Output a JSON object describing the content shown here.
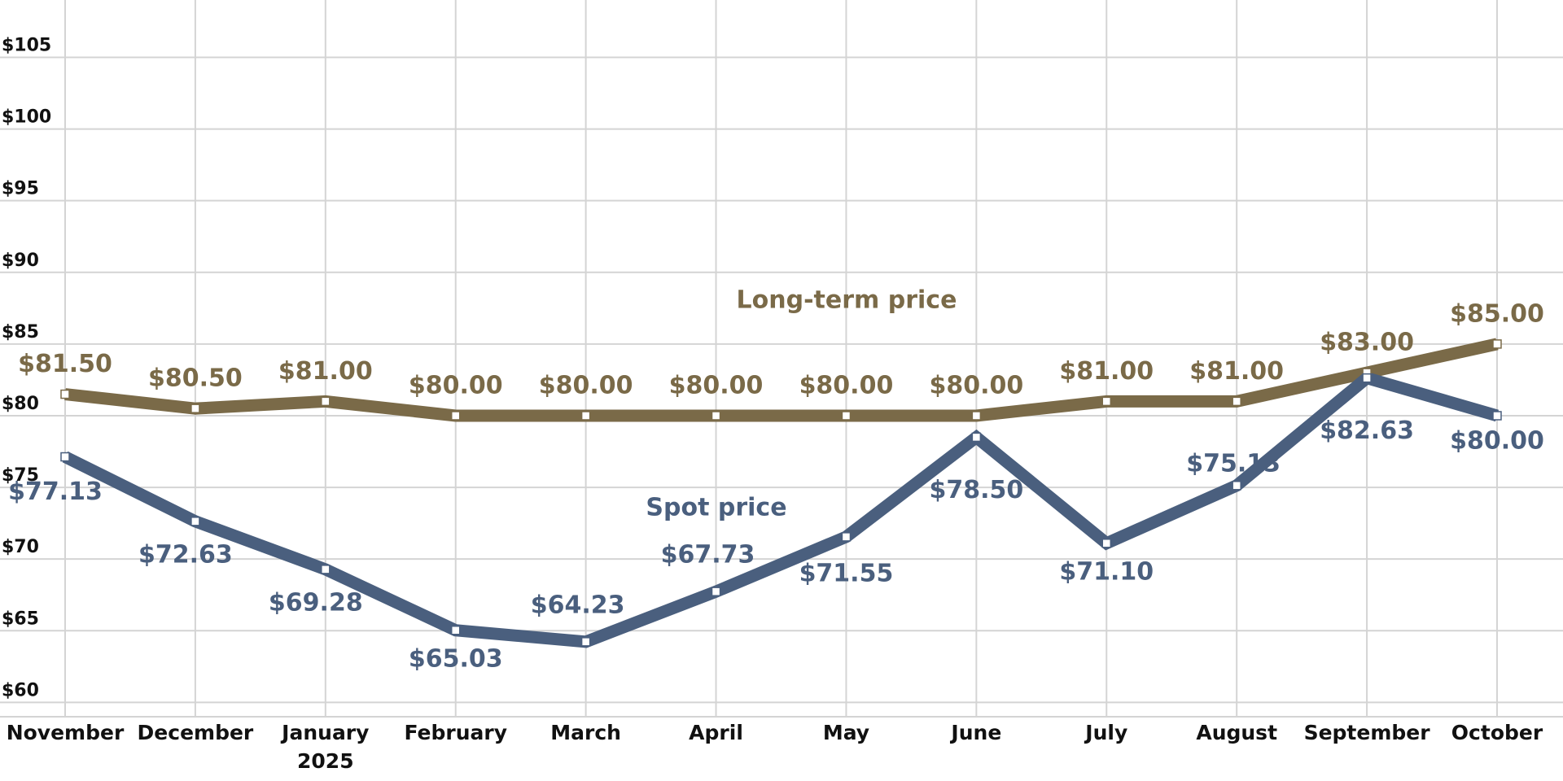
{
  "chart_data": {
    "type": "line",
    "categories": [
      "November",
      "December",
      "January",
      "February",
      "March",
      "April",
      "May",
      "June",
      "July",
      "August",
      "September",
      "October"
    ],
    "category_years": [
      null,
      null,
      "2025",
      null,
      null,
      null,
      null,
      null,
      null,
      null,
      null,
      null
    ],
    "series": [
      {
        "name": "Long-term price",
        "color": "#7a6a48",
        "values": [
          81.5,
          80.5,
          81,
          80,
          80,
          80,
          80,
          80,
          81,
          81,
          83,
          85
        ],
        "value_labels": [
          "$81.50",
          "$80.50",
          "$81.00",
          "$80.00",
          "$80.00",
          "$80.00",
          "$80.00",
          "$80.00",
          "$81.00",
          "$81.00",
          "$83.00",
          "$85.00"
        ]
      },
      {
        "name": "Spot price",
        "color": "#4a5f7e",
        "values": [
          77.13,
          72.63,
          69.28,
          65.03,
          64.23,
          67.73,
          71.55,
          78.5,
          71.1,
          75.13,
          82.63,
          80
        ],
        "value_labels": [
          "$77.13",
          "$72.63",
          "$69.28",
          "$65.03",
          "$64.23",
          "$67.73",
          "$71.55",
          "$78.50",
          "$71.10",
          "$75.13",
          "$82.63",
          "$80.00"
        ]
      }
    ],
    "ylim": [
      59,
      109
    ],
    "yticks": [
      {
        "value": 60,
        "label": "$60"
      },
      {
        "value": 65,
        "label": "$65"
      },
      {
        "value": 70,
        "label": "$70"
      },
      {
        "value": 75,
        "label": "$75"
      },
      {
        "value": 80,
        "label": "$80"
      },
      {
        "value": 85,
        "label": "$85"
      },
      {
        "value": 90,
        "label": "$90"
      },
      {
        "value": 95,
        "label": "$95"
      },
      {
        "value": 100,
        "label": "$100"
      },
      {
        "value": 105,
        "label": "$105"
      }
    ],
    "grid": true
  }
}
